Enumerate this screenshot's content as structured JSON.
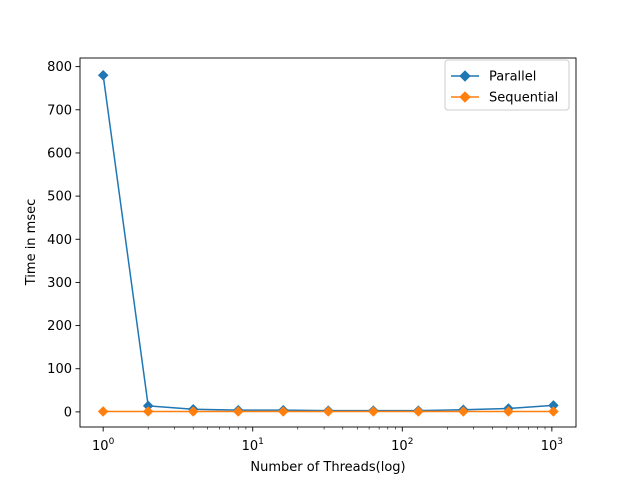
{
  "chart_data": {
    "type": "line",
    "title": "",
    "xlabel": "Number of Threads(log)",
    "ylabel": "Time in msec",
    "xscale": "log",
    "grid": false,
    "legend_position": "top-right",
    "x": [
      1,
      2,
      4,
      8,
      16,
      32,
      64,
      128,
      256,
      512,
      1024
    ],
    "xlim": [
      0.7,
      1450
    ],
    "ylim": [
      -35,
      820
    ],
    "x_ticks": [
      {
        "value": 1,
        "base": "10",
        "exp": "0"
      },
      {
        "value": 10,
        "base": "10",
        "exp": "1"
      },
      {
        "value": 100,
        "base": "10",
        "exp": "2"
      },
      {
        "value": 1000,
        "base": "10",
        "exp": "3"
      }
    ],
    "y_ticks": [
      0,
      100,
      200,
      300,
      400,
      500,
      600,
      700,
      800
    ],
    "series": [
      {
        "name": "Parallel",
        "color": "#1f77b4",
        "marker": "diamond",
        "values": [
          780,
          14,
          6,
          4,
          4,
          3,
          3,
          3,
          5,
          8,
          15
        ]
      },
      {
        "name": "Sequential",
        "color": "#ff7f0e",
        "marker": "diamond",
        "values": [
          1,
          1,
          1,
          1,
          1,
          1,
          1,
          1,
          1,
          1,
          1
        ]
      }
    ]
  }
}
